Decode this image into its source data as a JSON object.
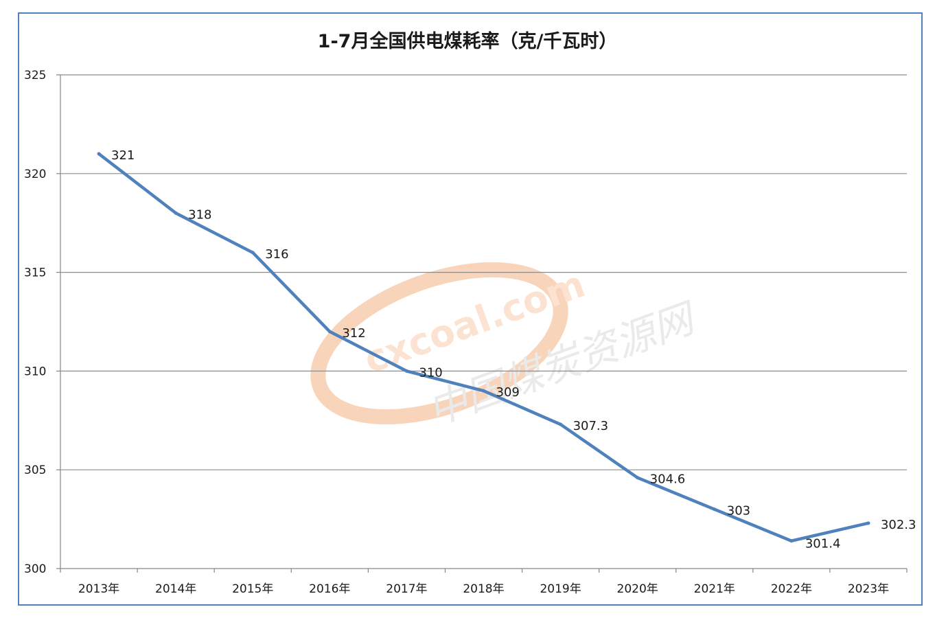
{
  "chart_data": {
    "type": "line",
    "title": "1-7月全国供电煤耗率（克/千瓦时）",
    "categories": [
      "2013年",
      "2014年",
      "2015年",
      "2016年",
      "2017年",
      "2018年",
      "2019年",
      "2020年",
      "2021年",
      "2022年",
      "2023年"
    ],
    "values": [
      321,
      318,
      316,
      312,
      310,
      309,
      307.3,
      304.6,
      303,
      301.4,
      302.3
    ],
    "data_labels": [
      "321",
      "318",
      "316",
      "312",
      "310",
      "309",
      "307.3",
      "304.6",
      "303",
      "301.4",
      "302.3"
    ],
    "ylim": [
      300,
      325
    ],
    "yticks": [
      "300",
      "305",
      "310",
      "315",
      "320",
      "325"
    ],
    "grid": true,
    "legend": "none",
    "series_color": "#4f81bd"
  },
  "watermark": {
    "latin": "cxcoal.com",
    "chinese": "中国煤炭资源网",
    "color": "#f4b183"
  },
  "colors": {
    "frame": "#4f81bd",
    "gridline": "#8c8c8c",
    "axis": "#868686"
  }
}
